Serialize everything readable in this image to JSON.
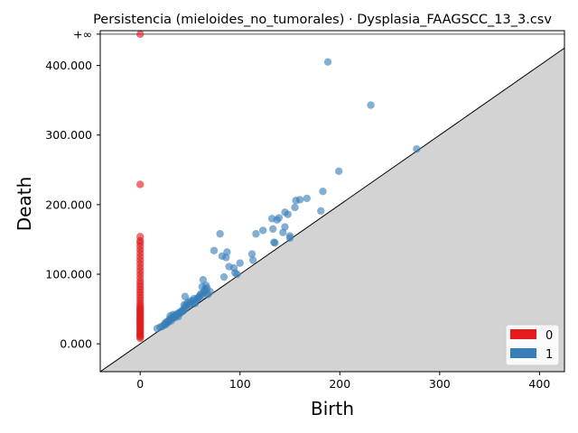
{
  "chart_data": {
    "type": "scatter",
    "title": "Persistencia (mieloides_no_tumorales) · Dysplasia_FAAGSCC_13_3.csv",
    "xlabel": "Birth",
    "ylabel": "Death",
    "xlim": [
      -40,
      425
    ],
    "ylim": [
      -40,
      450
    ],
    "x_ticks": [
      0,
      100,
      200,
      300,
      400
    ],
    "x_tick_labels": [
      "0",
      "100",
      "200",
      "300",
      "400"
    ],
    "y_ticks": [
      0,
      100000,
      200000,
      300000,
      400000
    ],
    "y_tick_labels": [
      "0.000",
      "100.000",
      "200.000",
      "300.000",
      "400.000"
    ],
    "y_unit_scale": 1000,
    "infinity_label": "+∞",
    "infinity_level": 445,
    "diagonal": true,
    "legend": {
      "position": "bottom-right",
      "entries": [
        "0",
        "1"
      ]
    },
    "colors": {
      "0": "#e41a1c",
      "1": "#377eb8",
      "band": "#d3d3d3"
    },
    "series": [
      {
        "name": "0",
        "points": [
          [
            0,
            8
          ],
          [
            0,
            10
          ],
          [
            0,
            12
          ],
          [
            0,
            14
          ],
          [
            0,
            16
          ],
          [
            0,
            18
          ],
          [
            0,
            20
          ],
          [
            0,
            22
          ],
          [
            0,
            24
          ],
          [
            0,
            26
          ],
          [
            0,
            28
          ],
          [
            0,
            30
          ],
          [
            0,
            32
          ],
          [
            0,
            34
          ],
          [
            0,
            36
          ],
          [
            0,
            38
          ],
          [
            0,
            40
          ],
          [
            0,
            42
          ],
          [
            0,
            44
          ],
          [
            0,
            46
          ],
          [
            0,
            48
          ],
          [
            0,
            50
          ],
          [
            0,
            52
          ],
          [
            0,
            55
          ],
          [
            0,
            58
          ],
          [
            0,
            62
          ],
          [
            0,
            66
          ],
          [
            0,
            70
          ],
          [
            0,
            74
          ],
          [
            0,
            78
          ],
          [
            0,
            82
          ],
          [
            0,
            86
          ],
          [
            0,
            90
          ],
          [
            0,
            95
          ],
          [
            0,
            100
          ],
          [
            0,
            105
          ],
          [
            0,
            110
          ],
          [
            0,
            115
          ],
          [
            0,
            120
          ],
          [
            0,
            125
          ],
          [
            0,
            130
          ],
          [
            0,
            135
          ],
          [
            0,
            140
          ],
          [
            0,
            145
          ],
          [
            0,
            148
          ],
          [
            0,
            154
          ],
          [
            0,
            229
          ]
        ],
        "infinite_births": [
          0
        ]
      },
      {
        "name": "1",
        "points": [
          [
            17,
            22
          ],
          [
            20,
            24
          ],
          [
            22,
            25
          ],
          [
            24,
            27
          ],
          [
            25,
            30
          ],
          [
            26,
            28
          ],
          [
            27,
            32
          ],
          [
            28,
            31
          ],
          [
            29,
            34
          ],
          [
            30,
            36
          ],
          [
            30,
            40
          ],
          [
            31,
            33
          ],
          [
            32,
            38
          ],
          [
            33,
            42
          ],
          [
            34,
            37
          ],
          [
            35,
            41
          ],
          [
            36,
            40
          ],
          [
            37,
            43
          ],
          [
            38,
            39
          ],
          [
            39,
            45
          ],
          [
            40,
            44
          ],
          [
            41,
            46
          ],
          [
            42,
            48
          ],
          [
            43,
            47
          ],
          [
            44,
            50
          ],
          [
            44,
            56
          ],
          [
            45,
            54
          ],
          [
            45,
            68
          ],
          [
            46,
            52
          ],
          [
            47,
            58
          ],
          [
            48,
            60
          ],
          [
            49,
            55
          ],
          [
            50,
            57
          ],
          [
            51,
            62
          ],
          [
            52,
            59
          ],
          [
            53,
            61
          ],
          [
            54,
            65
          ],
          [
            55,
            58
          ],
          [
            56,
            63
          ],
          [
            57,
            64
          ],
          [
            58,
            66
          ],
          [
            59,
            67
          ],
          [
            60,
            70
          ],
          [
            61,
            72
          ],
          [
            62,
            69
          ],
          [
            62,
            82
          ],
          [
            63,
            92
          ],
          [
            64,
            75
          ],
          [
            65,
            78
          ],
          [
            65,
            73
          ],
          [
            66,
            84
          ],
          [
            67,
            80
          ],
          [
            68,
            71
          ],
          [
            70,
            75
          ],
          [
            74,
            134
          ],
          [
            80,
            158
          ],
          [
            82,
            126
          ],
          [
            84,
            96
          ],
          [
            86,
            124
          ],
          [
            87,
            132
          ],
          [
            89,
            111
          ],
          [
            94,
            109
          ],
          [
            95,
            102
          ],
          [
            97,
            100
          ],
          [
            100,
            116
          ],
          [
            112,
            129
          ],
          [
            113,
            120
          ],
          [
            116,
            158
          ],
          [
            123,
            163
          ],
          [
            132,
            180
          ],
          [
            133,
            165
          ],
          [
            134,
            146
          ],
          [
            135,
            145
          ],
          [
            137,
            178
          ],
          [
            139,
            181
          ],
          [
            143,
            160
          ],
          [
            145,
            168
          ],
          [
            145,
            189
          ],
          [
            148,
            186
          ],
          [
            150,
            155
          ],
          [
            150,
            152
          ],
          [
            155,
            196
          ],
          [
            156,
            206
          ],
          [
            160,
            207
          ],
          [
            167,
            209
          ],
          [
            181,
            191
          ],
          [
            183,
            219
          ],
          [
            188,
            405
          ],
          [
            199,
            248
          ],
          [
            231,
            343
          ],
          [
            277,
            280
          ]
        ]
      }
    ]
  }
}
